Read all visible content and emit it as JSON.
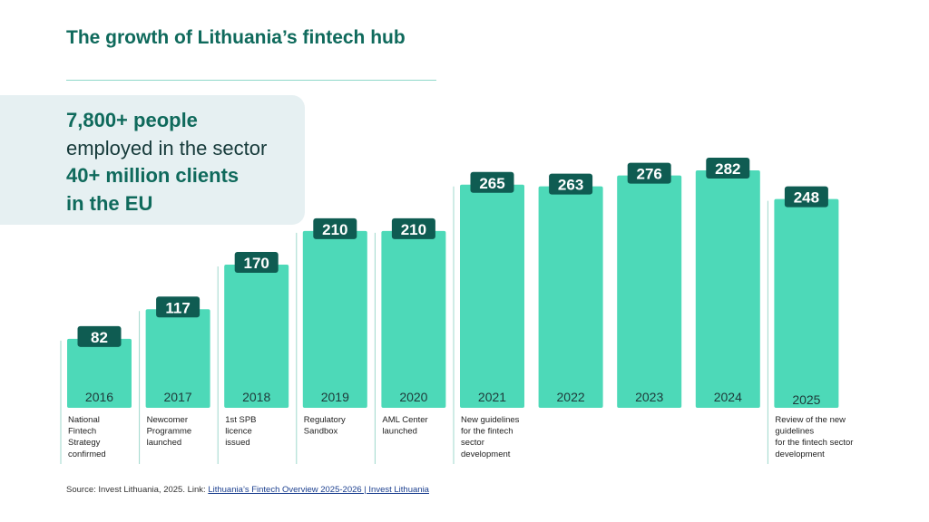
{
  "title": "The growth of Lithuania’s fintech hub",
  "highlights": [
    {
      "text": "7,800+ people",
      "emphasis": true
    },
    {
      "text": "employed in the sector",
      "emphasis": false
    },
    {
      "text": "40+ million clients",
      "emphasis": true
    },
    {
      "text": "in the EU",
      "emphasis": true
    }
  ],
  "colors": {
    "bar": "#4dd9b8",
    "label_bg": "#0f5c52",
    "label_text": "#ffffff",
    "title": "#0f6a5c",
    "year_text": "#1e3a3a",
    "milestone_text": "#222222",
    "divider": "#9fd8cc"
  },
  "chart_data": {
    "type": "bar",
    "categories": [
      "2016",
      "2017",
      "2018",
      "2019",
      "2020",
      "2021",
      "2022",
      "2023",
      "2024",
      "2025"
    ],
    "values": [
      82,
      117,
      170,
      210,
      210,
      265,
      263,
      276,
      282,
      248
    ],
    "title": "The growth of Lithuania’s fintech hub",
    "xlabel": "",
    "ylabel": "",
    "ylim": [
      0,
      282
    ],
    "grid": false,
    "legend": "none",
    "data_labels": true,
    "milestones": [
      "National\nFintech\nStrategy\nconfirmed",
      "Newcomer\nProgramme\nlaunched",
      "1st SPB\nlicence\nissued",
      "Regulatory\nSandbox",
      "AML Center\nlaunched",
      "New guidelines\nfor the fintech\nsector\ndevelopment",
      "",
      "",
      "",
      "Review of the new\nguidelines\nfor the fintech sector\ndevelopment"
    ]
  },
  "source": {
    "prefix": "Source: Invest Lithuania, 2025. Link: ",
    "link_text": "Lithuania’s Fintech Overview 2025-2026 | Invest Lithuania"
  }
}
